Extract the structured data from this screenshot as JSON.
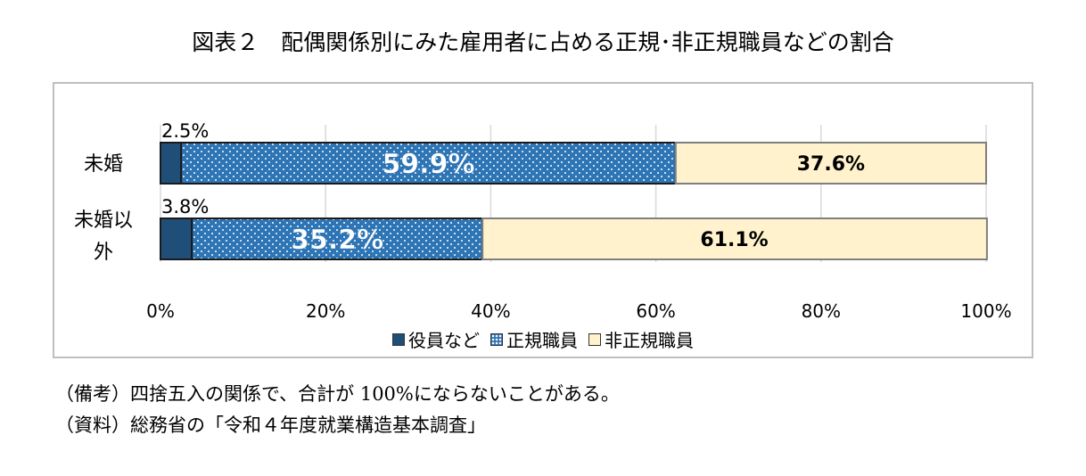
{
  "chart_data": {
    "type": "bar",
    "orientation": "horizontal",
    "stacked": "percent",
    "title": "図表２　配偶関係別にみた雇用者に占める正規･非正規職員などの割合",
    "categories": [
      "未婚",
      "未婚以外"
    ],
    "category_display": [
      [
        "未婚"
      ],
      [
        "未婚以",
        "外"
      ]
    ],
    "series": [
      {
        "name": "役員など",
        "values": [
          2.5,
          3.8
        ],
        "color": "#1f4e79",
        "labels": [
          "2.5%",
          "3.8%"
        ],
        "pattern": "solid"
      },
      {
        "name": "正規職員",
        "values": [
          59.9,
          35.2
        ],
        "color": "#2e75b6",
        "labels": [
          "59.9%",
          "35.2%"
        ],
        "pattern": "dots"
      },
      {
        "name": "非正規職員",
        "values": [
          37.6,
          61.1
        ],
        "color": "#fff2cc",
        "labels": [
          "37.6%",
          "61.1%"
        ],
        "pattern": "solid"
      }
    ],
    "xlim": [
      0,
      100
    ],
    "xticks": [
      "0%",
      "20%",
      "40%",
      "60%",
      "80%",
      "100%"
    ],
    "grid": true,
    "legend_position": "bottom"
  },
  "notes": [
    "（備考）四捨五入の関係で、合計が 100%にならないことがある。",
    "（資料）総務省の「令和４年度就業構造基本調査」"
  ]
}
